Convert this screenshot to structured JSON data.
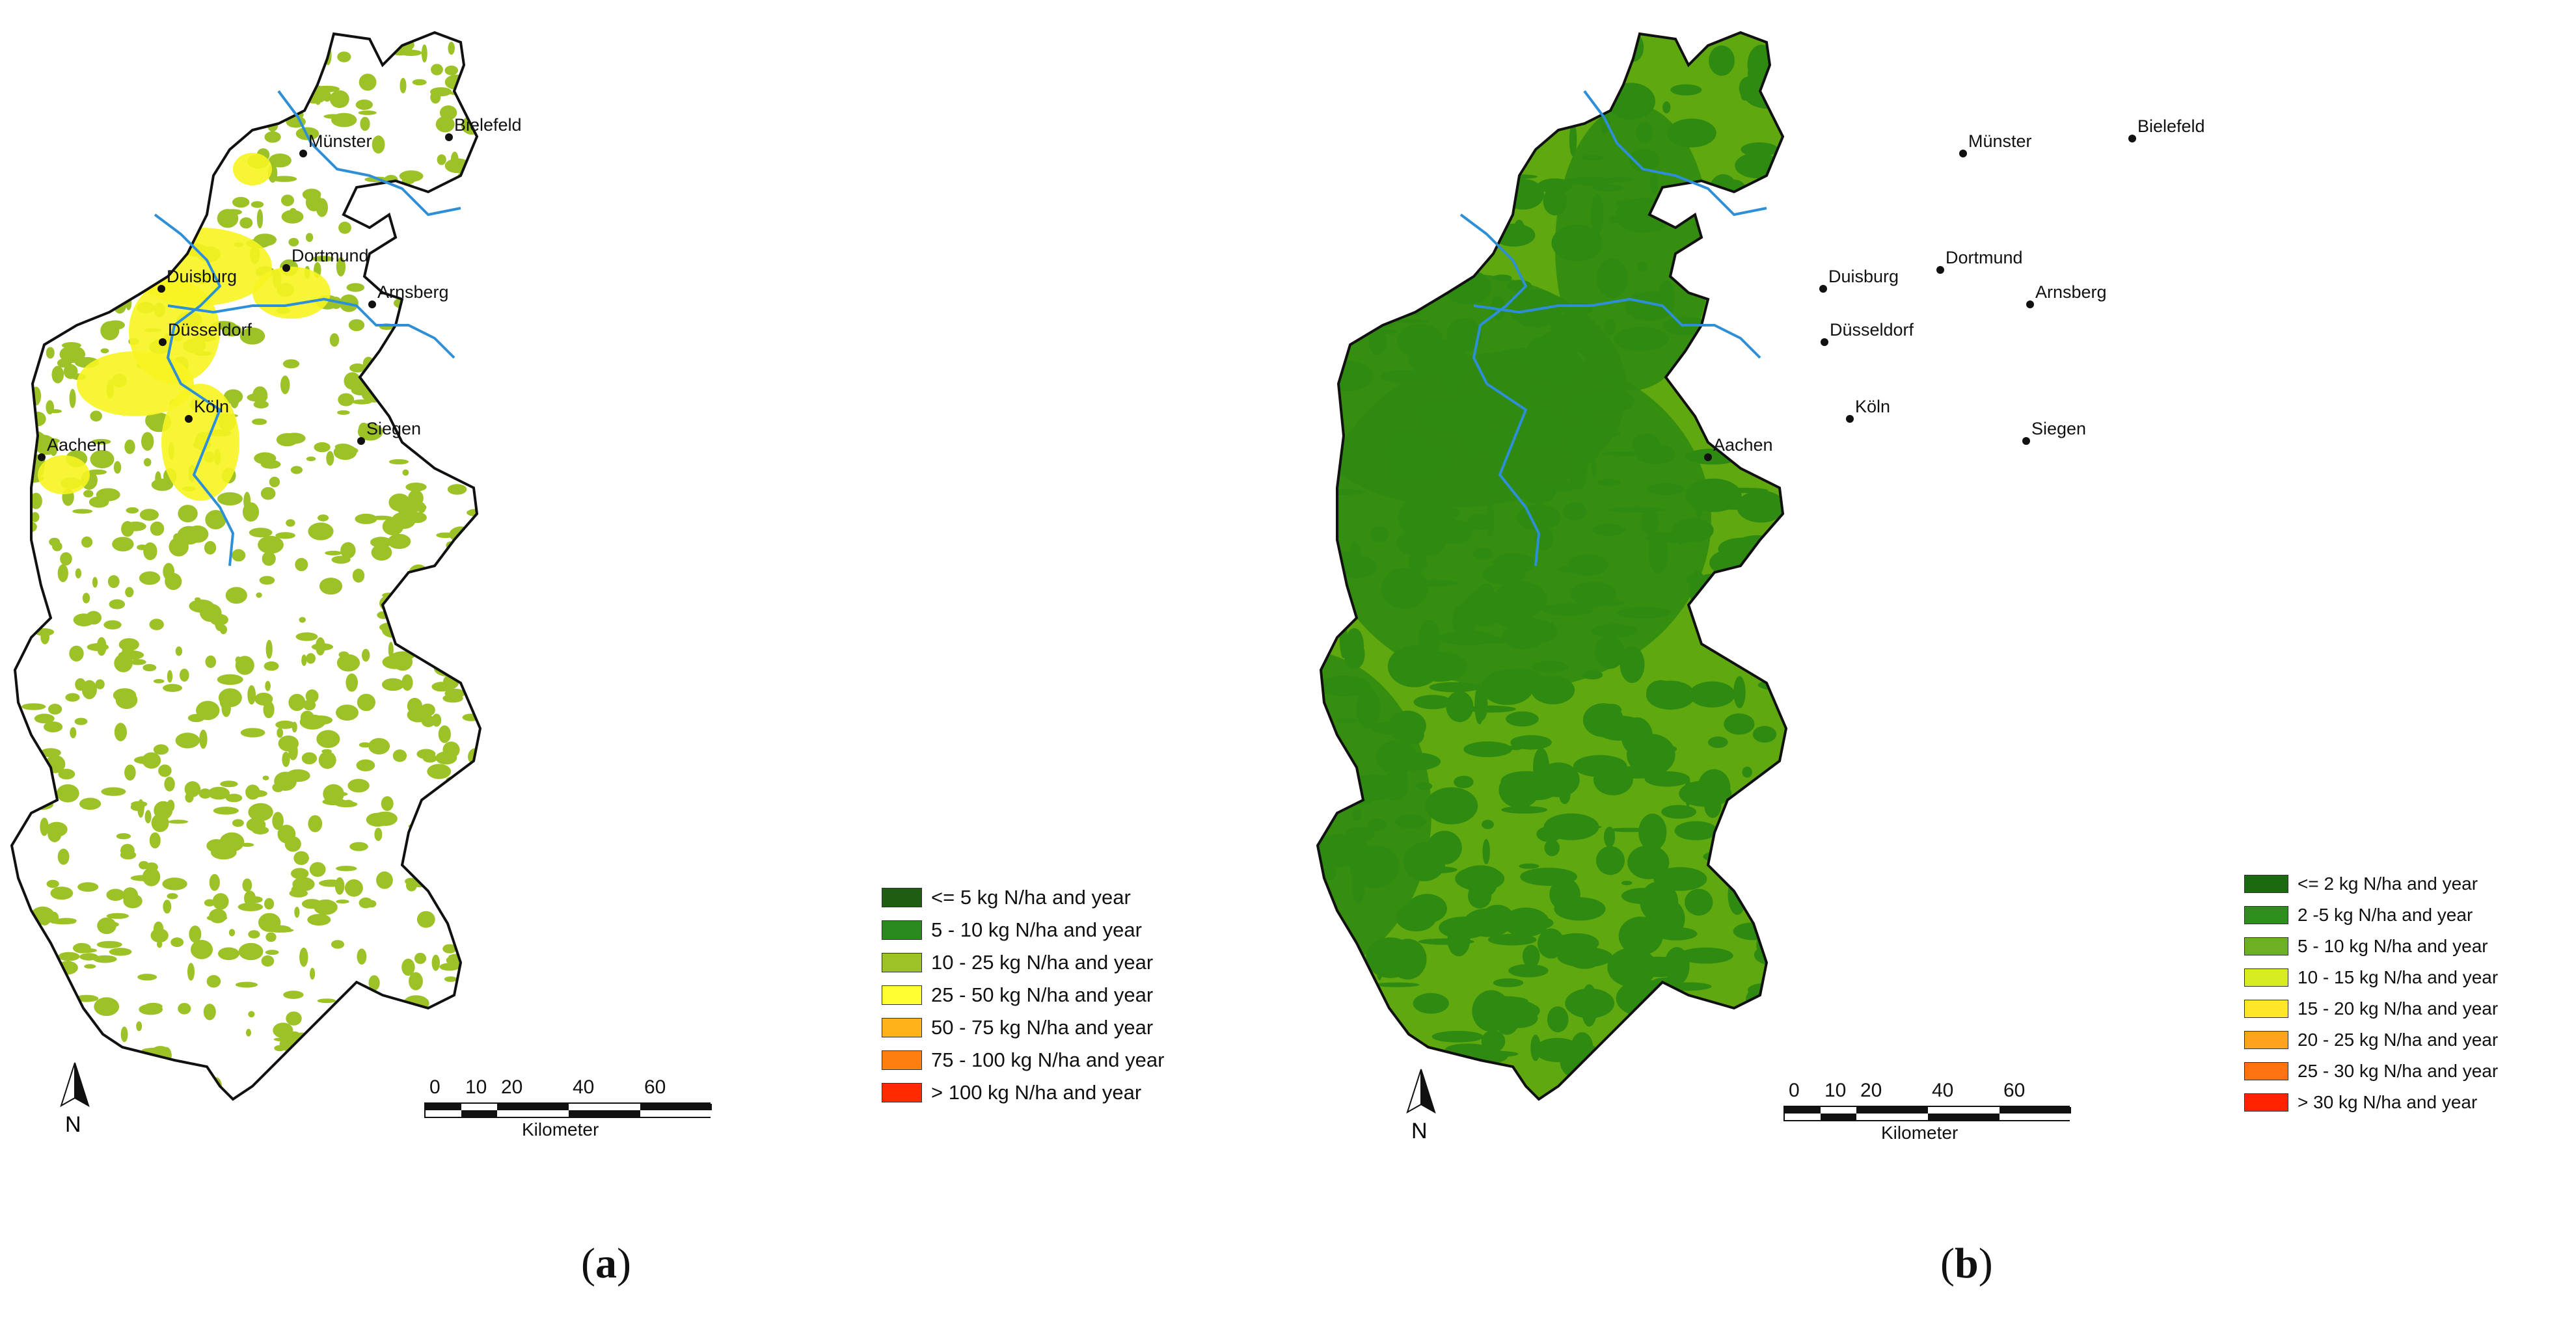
{
  "panels": [
    {
      "id": "a",
      "caption_open": "(",
      "caption_letter": "a",
      "caption_close": ")",
      "colors": {
        "state_fill": "#ffffff",
        "patch_fill": "#9cc227",
        "urban_fill": "#f7f421",
        "river": "#2f8fd6",
        "border": "#111111"
      },
      "cities": [
        {
          "name": "Münster"
        },
        {
          "name": "Bielefeld"
        },
        {
          "name": "Dortmund"
        },
        {
          "name": "Duisburg"
        },
        {
          "name": "Arnsberg"
        },
        {
          "name": "Düsseldorf"
        },
        {
          "name": "Köln"
        },
        {
          "name": "Siegen"
        },
        {
          "name": "Aachen"
        }
      ],
      "legend": [
        {
          "label": "<= 5 kg N/ha and year",
          "color": "#1f5e10"
        },
        {
          "label": "5 - 10 kg N/ha and year",
          "color": "#2a8a1e"
        },
        {
          "label": "10 - 25 kg N/ha and year",
          "color": "#9cc227"
        },
        {
          "label": "25 - 50 kg N/ha and year",
          "color": "#ffff33"
        },
        {
          "label": "50 - 75 kg N/ha and year",
          "color": "#ffb21a"
        },
        {
          "label": "75 - 100 kg N/ha and year",
          "color": "#ff7f0e"
        },
        {
          "label": "> 100 kg N/ha and year",
          "color": "#ff2a00"
        }
      ],
      "scale": {
        "ticks": [
          "0",
          "10",
          "20",
          "40",
          "60"
        ],
        "unit": "Kilometer"
      },
      "north_label": "N"
    },
    {
      "id": "b",
      "caption_open": "(",
      "caption_letter": "b",
      "caption_close": ")",
      "colors": {
        "state_fill": "#5fa80f",
        "patch_fill": "#2f8a12",
        "urban_fill": "#5fa80f",
        "river": "#2f8fd6",
        "border": "#111111"
      },
      "cities": [
        {
          "name": "Münster"
        },
        {
          "name": "Bielefeld"
        },
        {
          "name": "Dortmund"
        },
        {
          "name": "Duisburg"
        },
        {
          "name": "Arnsberg"
        },
        {
          "name": "Düsseldorf"
        },
        {
          "name": "Köln"
        },
        {
          "name": "Siegen"
        },
        {
          "name": "Aachen"
        }
      ],
      "legend": [
        {
          "label": "<= 2 kg N/ha and year",
          "color": "#1a6a10"
        },
        {
          "label": "2  -5 kg N/ha and year",
          "color": "#2e8e1c"
        },
        {
          "label": "5 - 10 kg N/ha and year",
          "color": "#6cb024"
        },
        {
          "label": "10 - 15 kg N/ha and year",
          "color": "#d8ec22"
        },
        {
          "label": "15 - 20 kg N/ha and year",
          "color": "#ffe629"
        },
        {
          "label": "20 - 25 kg N/ha and year",
          "color": "#ffa21c"
        },
        {
          "label": "25 - 30 kg N/ha and year",
          "color": "#ff7210"
        },
        {
          "label": "> 30 kg N/ha and year",
          "color": "#ff2400"
        }
      ],
      "scale": {
        "ticks": [
          "0",
          "10",
          "20",
          "40",
          "60"
        ],
        "unit": "Kilometer"
      },
      "north_label": "N"
    }
  ]
}
